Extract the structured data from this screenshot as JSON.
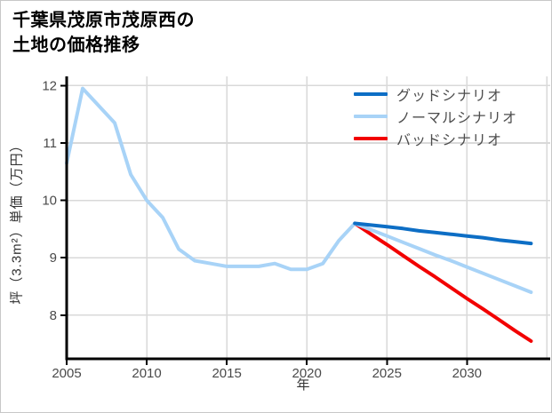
{
  "title_lines": [
    "千葉県茂原市茂原西の",
    "土地の価格推移"
  ],
  "colors": {
    "good": "#0d6ec5",
    "normal": "#a8d3f7",
    "bad": "#f20000",
    "grid": "#d9d9d9",
    "spine": "#000000",
    "tick_text": "#4a4a4a",
    "legend_text": "#4d4d4d",
    "background": "#ffffff",
    "border": "#c8c8c8"
  },
  "legend": {
    "items": [
      {
        "label": "グッドシナリオ",
        "color": "#0d6ec5"
      },
      {
        "label": "ノーマルシナリオ",
        "color": "#a8d3f7"
      },
      {
        "label": "バッドシナリオ",
        "color": "#f20000"
      }
    ]
  },
  "chart_data": {
    "type": "line",
    "title": "千葉県茂原市茂原西の土地の価格推移",
    "xlabel": "年",
    "ylabel": "坪（3.3m²）単価（万円）",
    "xlim": [
      2005,
      2035.2
    ],
    "ylim": [
      7.24,
      12.16
    ],
    "xticks": [
      2005,
      2010,
      2015,
      2020,
      2025,
      2030
    ],
    "yticks": [
      8,
      9,
      10,
      11,
      12
    ],
    "x_gridlines": [
      2010,
      2015,
      2020,
      2025,
      2030,
      2035
    ],
    "grid": true,
    "legend_position": "upper right",
    "series": [
      {
        "key": "bad",
        "name": "バッドシナリオ",
        "color": "#f20000",
        "x": [
          2023,
          2024,
          2025,
          2026,
          2027,
          2028,
          2029,
          2030,
          2031,
          2032,
          2033,
          2034
        ],
        "values": [
          9.6,
          9.41,
          9.23,
          9.04,
          8.85,
          8.67,
          8.48,
          8.29,
          8.11,
          7.92,
          7.73,
          7.55
        ]
      },
      {
        "key": "normal",
        "name": "ノーマルシナリオ",
        "color": "#a8d3f7",
        "x": [
          2005,
          2006,
          2007,
          2008,
          2009,
          2010,
          2011,
          2012,
          2013,
          2014,
          2015,
          2016,
          2017,
          2018,
          2019,
          2020,
          2021,
          2022,
          2023,
          2024,
          2025,
          2026,
          2027,
          2028,
          2029,
          2030,
          2031,
          2032,
          2033,
          2034
        ],
        "values": [
          10.65,
          11.95,
          11.65,
          11.35,
          10.45,
          10.0,
          9.7,
          9.15,
          8.95,
          8.9,
          8.85,
          8.85,
          8.85,
          8.9,
          8.8,
          8.8,
          8.9,
          9.3,
          9.6,
          9.49,
          9.38,
          9.27,
          9.16,
          9.05,
          8.95,
          8.84,
          8.73,
          8.62,
          8.51,
          8.4
        ]
      },
      {
        "key": "good",
        "name": "グッドシナリオ",
        "color": "#0d6ec5",
        "x": [
          2023,
          2024,
          2025,
          2026,
          2027,
          2028,
          2029,
          2030,
          2031,
          2032,
          2033,
          2034
        ],
        "values": [
          9.6,
          9.57,
          9.54,
          9.51,
          9.47,
          9.44,
          9.41,
          9.38,
          9.35,
          9.31,
          9.28,
          9.25
        ]
      }
    ]
  }
}
